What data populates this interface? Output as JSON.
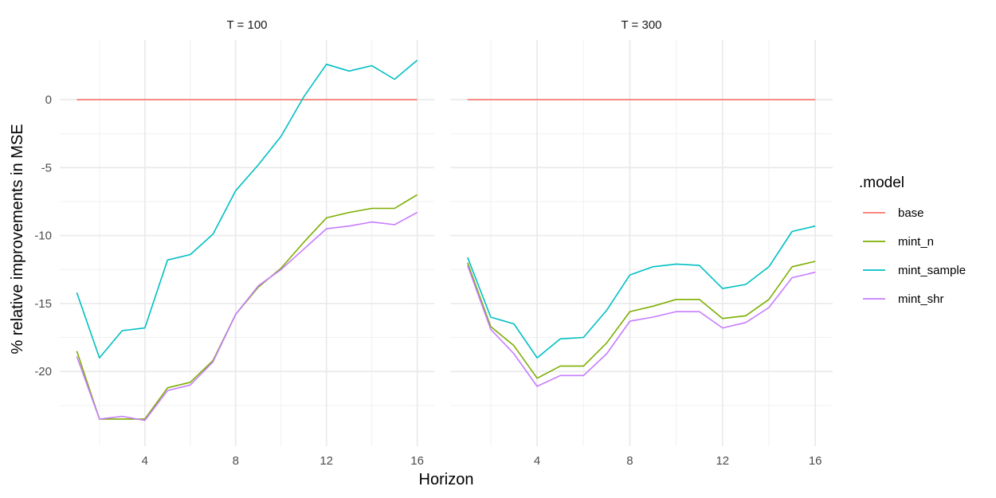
{
  "chart_data": {
    "type": "line",
    "facets": [
      {
        "label": "T = 100",
        "series": [
          {
            "name": "base",
            "color": "#F8766D",
            "values": [
              0,
              0,
              0,
              0,
              0,
              0,
              0,
              0,
              0,
              0,
              0,
              0,
              0,
              0,
              0,
              0
            ]
          },
          {
            "name": "mint_n",
            "color": "#7CAE00",
            "values": [
              -18.5,
              -23.5,
              -23.5,
              -23.5,
              -21.2,
              -20.8,
              -19.2,
              -15.8,
              -13.8,
              -12.4,
              -10.5,
              -8.7,
              -8.3,
              -8.0,
              -8.0,
              -7.0
            ]
          },
          {
            "name": "mint_sample",
            "color": "#00BFC4",
            "values": [
              -14.2,
              -19.0,
              -17.0,
              -16.8,
              -11.8,
              -11.4,
              -9.9,
              -6.7,
              -4.8,
              -2.7,
              0.2,
              2.6,
              2.1,
              2.5,
              1.5,
              2.9
            ]
          },
          {
            "name": "mint_shr",
            "color": "#C77CFF",
            "values": [
              -18.9,
              -23.5,
              -23.3,
              -23.6,
              -21.4,
              -21.0,
              -19.3,
              -15.8,
              -13.7,
              -12.5,
              -11.0,
              -9.5,
              -9.3,
              -9.0,
              -9.2,
              -8.3
            ]
          }
        ]
      },
      {
        "label": "T = 300",
        "series": [
          {
            "name": "base",
            "color": "#F8766D",
            "values": [
              0,
              0,
              0,
              0,
              0,
              0,
              0,
              0,
              0,
              0,
              0,
              0,
              0,
              0,
              0,
              0
            ]
          },
          {
            "name": "mint_n",
            "color": "#7CAE00",
            "values": [
              -12.0,
              -16.7,
              -18.1,
              -20.5,
              -19.6,
              -19.6,
              -17.9,
              -15.6,
              -15.2,
              -14.7,
              -14.7,
              -16.1,
              -15.9,
              -14.7,
              -12.3,
              -11.9
            ]
          },
          {
            "name": "mint_sample",
            "color": "#00BFC4",
            "values": [
              -11.6,
              -16.0,
              -16.5,
              -19.0,
              -17.6,
              -17.5,
              -15.5,
              -12.9,
              -12.3,
              -12.1,
              -12.2,
              -13.9,
              -13.6,
              -12.3,
              -9.7,
              -9.3
            ]
          },
          {
            "name": "mint_shr",
            "color": "#C77CFF",
            "values": [
              -12.2,
              -16.9,
              -18.7,
              -21.1,
              -20.3,
              -20.3,
              -18.7,
              -16.3,
              -16.0,
              -15.6,
              -15.6,
              -16.8,
              -16.4,
              -15.3,
              -13.1,
              -12.7
            ]
          }
        ]
      }
    ],
    "x": [
      1,
      2,
      3,
      4,
      5,
      6,
      7,
      8,
      9,
      10,
      11,
      12,
      13,
      14,
      15,
      16
    ],
    "xlabel": "Horizon",
    "ylabel": "% relative improvements in MSE",
    "xticks": [
      4,
      8,
      12,
      16
    ],
    "yticks": [
      0,
      -5,
      -10,
      -15,
      -20
    ],
    "ytick_labels": [
      "0",
      "-5",
      "-10",
      "-15",
      "-20"
    ],
    "xlim": [
      0.25,
      16.75
    ],
    "ylim": [
      -25.5,
      4.4
    ],
    "grid": true,
    "legend": {
      "title": ".model",
      "position": "right",
      "entries": [
        "base",
        "mint_n",
        "mint_sample",
        "mint_shr"
      ],
      "colors": [
        "#F8766D",
        "#7CAE00",
        "#00BFC4",
        "#C77CFF"
      ]
    }
  }
}
